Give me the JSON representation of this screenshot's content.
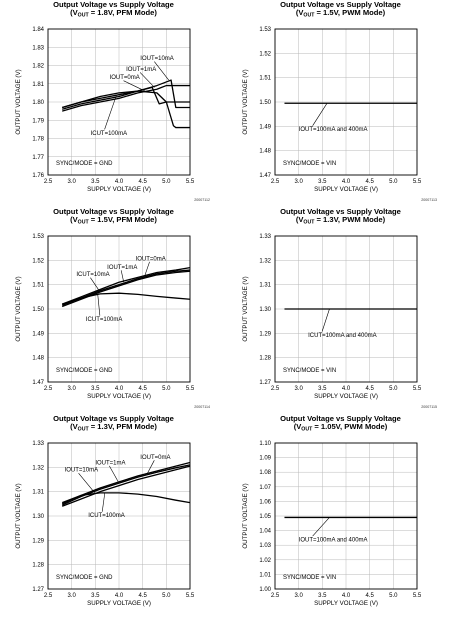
{
  "panels": [
    {
      "title": "Output Voltage vs Supply Voltage",
      "subtitle_pre": "(V",
      "subtitle_sub": "OUT",
      "subtitle_post": " = 1.8V, PFM Mode)",
      "figure_code": "20007112"
    },
    {
      "title": "Output Voltage vs Supply Voltage",
      "subtitle_pre": "(V",
      "subtitle_sub": "OUT",
      "subtitle_post": " = 1.5V, PWM Mode)",
      "figure_code": "20007113"
    },
    {
      "title": "Output Voltage vs Supply Voltage",
      "subtitle_pre": "(V",
      "subtitle_sub": "OUT",
      "subtitle_post": " = 1.5V, PFM Mode)",
      "figure_code": "20007114"
    },
    {
      "title": "Output Voltage vs Supply Voltage",
      "subtitle_pre": "(V",
      "subtitle_sub": "OUT",
      "subtitle_post": " = 1.3V, PWM Mode)",
      "figure_code": "20007115"
    },
    {
      "title": "Output Voltage vs Supply Voltage",
      "subtitle_pre": "(V",
      "subtitle_sub": "OUT",
      "subtitle_post": " = 1.3V, PFM Mode)",
      "figure_code": ""
    },
    {
      "title": "Output Voltage vs Supply Voltage",
      "subtitle_pre": "(V",
      "subtitle_sub": "OUT",
      "subtitle_post": " = 1.05V, PWM Mode)",
      "figure_code": ""
    }
  ],
  "chart_data": [
    {
      "type": "line",
      "title": "Output Voltage vs Supply Voltage (VOUT = 1.8V, PFM Mode)",
      "xlabel": "SUPPLY VOLTAGE (V)",
      "ylabel": "OUTPUT VOLTAGE (V)",
      "xlim": [
        2.5,
        5.5
      ],
      "ylim": [
        1.76,
        1.84
      ],
      "xticks": [
        "2.5",
        "3.0",
        "3.5",
        "4.0",
        "4.5",
        "5.0",
        "5.5"
      ],
      "yticks": [
        "1.76",
        "1.77",
        "1.78",
        "1.79",
        "1.80",
        "1.81",
        "1.82",
        "1.83",
        "1.84"
      ],
      "grid": true,
      "condition_label": "SYNC/MODE = GND",
      "series": [
        {
          "name": "IOUT=10mA",
          "x": [
            2.8,
            3.2,
            3.6,
            4.0,
            4.4,
            4.8,
            5.0,
            5.1,
            5.2,
            5.5
          ],
          "y": [
            1.797,
            1.8,
            1.802,
            1.804,
            1.806,
            1.809,
            1.811,
            1.812,
            1.797,
            1.797
          ]
        },
        {
          "name": "IOUT=1mA",
          "x": [
            2.8,
            3.2,
            3.6,
            4.0,
            4.4,
            4.7,
            4.85,
            5.0,
            5.5
          ],
          "y": [
            1.796,
            1.799,
            1.801,
            1.803,
            1.806,
            1.808,
            1.799,
            1.8,
            1.8
          ]
        },
        {
          "name": "IOUT=0mA",
          "x": [
            2.8,
            3.2,
            3.6,
            4.0,
            4.4,
            4.8,
            4.9,
            5.0,
            5.5
          ],
          "y": [
            1.795,
            1.798,
            1.8,
            1.802,
            1.805,
            1.807,
            1.808,
            1.809,
            1.809
          ]
        },
        {
          "name": "IOUT=100mA",
          "x": [
            2.8,
            3.2,
            3.6,
            4.0,
            4.4,
            4.8,
            5.0,
            5.15,
            5.2,
            5.5
          ],
          "y": [
            1.797,
            1.8,
            1.803,
            1.805,
            1.806,
            1.805,
            1.8,
            1.787,
            1.786,
            1.786
          ]
        }
      ],
      "labels": [
        {
          "text": "IOUT=10mA",
          "x": 4.45,
          "y": 1.823,
          "tip": [
            5.05,
            1.812
          ]
        },
        {
          "text": "IOUT=1mA",
          "x": 4.15,
          "y": 1.817,
          "tip": [
            4.75,
            1.808
          ]
        },
        {
          "text": "IOUT=0mA",
          "x": 3.8,
          "y": 1.8125,
          "tip": [
            4.55,
            1.806
          ]
        },
        {
          "text": "ICUT=100mA",
          "x": 3.4,
          "y": 1.782,
          "tip": [
            3.95,
            1.804
          ]
        }
      ]
    },
    {
      "type": "line",
      "title": "Output Voltage vs Supply Voltage (VOUT = 1.5V, PWM Mode)",
      "xlabel": "SUPPLY VOLTAGE (V)",
      "ylabel": "OUTPUT VOLTAGE (V)",
      "xlim": [
        2.5,
        5.5
      ],
      "ylim": [
        1.47,
        1.53
      ],
      "xticks": [
        "2.5",
        "3.0",
        "3.5",
        "4.0",
        "4.5",
        "5.0",
        "5.5"
      ],
      "yticks": [
        "1.47",
        "1.48",
        "1.49",
        "1.50",
        "1.51",
        "1.52",
        "1.53"
      ],
      "grid": true,
      "condition_label": "SYNC/MODE = VIN",
      "series": [
        {
          "name": "IOUT=100mA and 400mA",
          "x": [
            2.7,
            5.5
          ],
          "y": [
            1.4995,
            1.4995
          ]
        }
      ],
      "labels": [
        {
          "text": "IOUT=100mA and 400mA",
          "x": 3.0,
          "y": 1.488,
          "tip": [
            3.6,
            1.4995
          ]
        }
      ]
    },
    {
      "type": "line",
      "title": "Output Voltage vs Supply Voltage (VOUT = 1.5V, PFM Mode)",
      "xlabel": "SUPPLY VOLTAGE (V)",
      "ylabel": "OUTPUT VOLTAGE (V)",
      "xlim": [
        2.5,
        5.5
      ],
      "ylim": [
        1.47,
        1.53
      ],
      "xticks": [
        "2.5",
        "3.0",
        "3.5",
        "4.0",
        "4.5",
        "5.0",
        "5.5"
      ],
      "yticks": [
        "1.47",
        "1.48",
        "1.49",
        "1.50",
        "1.51",
        "1.52",
        "1.53"
      ],
      "grid": true,
      "condition_label": "SYNC/MODE = GND",
      "series": [
        {
          "name": "IOUT=0mA",
          "x": [
            2.8,
            3.2,
            3.6,
            4.0,
            4.4,
            4.8,
            5.2,
            5.5
          ],
          "y": [
            1.502,
            1.505,
            1.508,
            1.511,
            1.513,
            1.515,
            1.516,
            1.517
          ]
        },
        {
          "name": "IOUT=1mA",
          "x": [
            2.8,
            3.2,
            3.6,
            4.0,
            4.4,
            4.8,
            5.2,
            5.5
          ],
          "y": [
            1.5015,
            1.5045,
            1.5075,
            1.51,
            1.5125,
            1.5145,
            1.5155,
            1.516
          ]
        },
        {
          "name": "IOUT=10mA",
          "x": [
            2.8,
            3.2,
            3.6,
            4.0,
            4.4,
            4.8,
            5.2,
            5.5
          ],
          "y": [
            1.501,
            1.504,
            1.507,
            1.5095,
            1.512,
            1.514,
            1.515,
            1.5155
          ]
        },
        {
          "name": "IOUT=100mA",
          "x": [
            2.8,
            3.2,
            3.6,
            4.0,
            4.4,
            4.8,
            5.2,
            5.5
          ],
          "y": [
            1.502,
            1.5045,
            1.5062,
            1.5065,
            1.506,
            1.5052,
            1.5045,
            1.504
          ]
        }
      ],
      "labels": [
        {
          "text": "IOUT=0mA",
          "x": 4.35,
          "y": 1.52,
          "tip": [
            4.55,
            1.514
          ]
        },
        {
          "text": "IOUT=1mA",
          "x": 3.75,
          "y": 1.5165,
          "tip": [
            4.1,
            1.511
          ]
        },
        {
          "text": "ICUT=10mA",
          "x": 3.1,
          "y": 1.5135,
          "tip": [
            3.6,
            1.507
          ]
        },
        {
          "text": "ICUT=100mA",
          "x": 3.3,
          "y": 1.495,
          "tip": [
            3.55,
            1.5062
          ]
        }
      ]
    },
    {
      "type": "line",
      "title": "Output Voltage vs Supply Voltage (VOUT = 1.3V, PWM Mode)",
      "xlabel": "SUPPLY VOLTAGE (V)",
      "ylabel": "OUTPUT VOLTAGE (V)",
      "xlim": [
        2.5,
        5.5
      ],
      "ylim": [
        1.27,
        1.33
      ],
      "xticks": [
        "2.5",
        "3.0",
        "3.5",
        "4.0",
        "4.5",
        "5.0",
        "5.5"
      ],
      "yticks": [
        "1.27",
        "1.28",
        "1.29",
        "1.30",
        "1.31",
        "1.32",
        "1.33"
      ],
      "grid": true,
      "condition_label": "SYNC/MODE = VIN",
      "series": [
        {
          "name": "IOUT=100mA and 400mA",
          "x": [
            2.7,
            5.5
          ],
          "y": [
            1.3,
            1.3
          ]
        }
      ],
      "labels": [
        {
          "text": "ICUT=100mA and 400mA",
          "x": 3.2,
          "y": 1.2885,
          "tip": [
            3.65,
            1.3
          ]
        }
      ]
    },
    {
      "type": "line",
      "title": "Output Voltage vs Supply Voltage (VOUT = 1.3V, PFM Mode)",
      "xlabel": "SUPPLY VOLTAGE (V)",
      "ylabel": "OUTPUT VOLTAGE (V)",
      "xlim": [
        2.5,
        5.5
      ],
      "ylim": [
        1.27,
        1.33
      ],
      "xticks": [
        "2.5",
        "3.0",
        "3.5",
        "4.0",
        "4.5",
        "5.0",
        "5.5"
      ],
      "yticks": [
        "1.27",
        "1.28",
        "1.29",
        "1.30",
        "1.31",
        "1.32",
        "1.33"
      ],
      "grid": true,
      "condition_label": "SYNC/MODE = GND",
      "series": [
        {
          "name": "IOUT=0mA",
          "x": [
            2.8,
            3.2,
            3.6,
            4.0,
            4.4,
            4.8,
            5.2,
            5.5
          ],
          "y": [
            1.305,
            1.3085,
            1.3115,
            1.314,
            1.3165,
            1.3185,
            1.3205,
            1.322
          ]
        },
        {
          "name": "IOUT=1mA",
          "x": [
            2.8,
            3.2,
            3.6,
            4.0,
            4.4,
            4.8,
            5.2,
            5.5
          ],
          "y": [
            1.3045,
            1.308,
            1.311,
            1.3135,
            1.316,
            1.318,
            1.3198,
            1.321
          ]
        },
        {
          "name": "IOUT=10mA",
          "x": [
            2.8,
            3.2,
            3.6,
            4.0,
            4.4,
            4.8,
            5.2,
            5.5
          ],
          "y": [
            1.304,
            1.307,
            1.31,
            1.3125,
            1.315,
            1.317,
            1.319,
            1.3205
          ]
        },
        {
          "name": "IOUT=100mA",
          "x": [
            2.8,
            3.2,
            3.6,
            4.0,
            4.4,
            4.8,
            5.2,
            5.5
          ],
          "y": [
            1.3055,
            1.3085,
            1.3095,
            1.3095,
            1.309,
            1.308,
            1.3065,
            1.3055
          ]
        }
      ],
      "labels": [
        {
          "text": "IOUT=0mA",
          "x": 4.45,
          "y": 1.3235,
          "tip": [
            4.6,
            1.3175
          ]
        },
        {
          "text": "IOUT=1mA",
          "x": 3.5,
          "y": 1.3212,
          "tip": [
            4.0,
            1.3135
          ]
        },
        {
          "text": "IOUT=10mA",
          "x": 2.85,
          "y": 1.3182,
          "tip": [
            3.5,
            1.3092
          ]
        },
        {
          "text": "ICUT=100mA",
          "x": 3.35,
          "y": 1.2995,
          "tip": [
            3.7,
            1.3095
          ]
        }
      ]
    },
    {
      "type": "line",
      "title": "Output Voltage vs Supply Voltage (VOUT = 1.05V, PWM Mode)",
      "xlabel": "SUPPLY VOLTAGE (V)",
      "ylabel": "OUTPUT VOLTAGE (V)",
      "xlim": [
        2.5,
        5.5
      ],
      "ylim": [
        1.0,
        1.1
      ],
      "xticks": [
        "2.5",
        "3.0",
        "3.5",
        "4.0",
        "4.5",
        "5.0",
        "5.5"
      ],
      "yticks": [
        "1.00",
        "1.01",
        "1.02",
        "1.03",
        "1.04",
        "1.05",
        "1.06",
        "1.07",
        "1.08",
        "1.09",
        "1.10"
      ],
      "grid": true,
      "condition_label": "SYNC/MODE = VIN",
      "series": [
        {
          "name": "IOUT=100mA and 400mA",
          "x": [
            2.7,
            5.5
          ],
          "y": [
            1.049,
            1.049
          ]
        }
      ],
      "labels": [
        {
          "text": "IOUT=100mA and 400mA",
          "x": 3.0,
          "y": 1.0325,
          "tip": [
            3.65,
            1.049
          ]
        }
      ]
    }
  ]
}
